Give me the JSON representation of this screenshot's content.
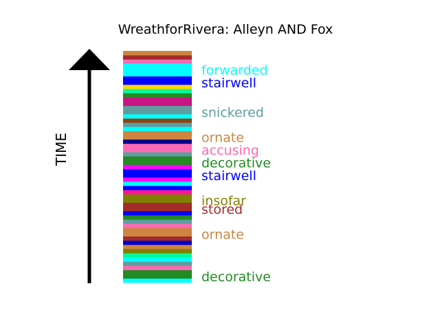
{
  "chart_data": {
    "type": "bar",
    "title": "WreathforRivera: Alleyn AND Fox",
    "axis_label": "TIME",
    "direction": "up",
    "stripes": [
      {
        "color": "#00ffff"
      },
      {
        "color": "#228b22"
      },
      {
        "color": "#228b22"
      },
      {
        "color": "#ff69b4"
      },
      {
        "color": "#5f9ea0"
      },
      {
        "color": "#00ffff"
      },
      {
        "color": "#00fa9a"
      },
      {
        "color": "#808000"
      },
      {
        "color": "#cd853f"
      },
      {
        "color": "#0000cd"
      },
      {
        "color": "#a52a2a"
      },
      {
        "color": "#cd853f"
      },
      {
        "color": "#cd853f"
      },
      {
        "color": "#ff69b4"
      },
      {
        "color": "#5f9ea0"
      },
      {
        "color": "#228b22"
      },
      {
        "color": "#0000ff"
      },
      {
        "color": "#a52a2a"
      },
      {
        "color": "#a52a2a"
      },
      {
        "color": "#808000"
      },
      {
        "color": "#808000"
      },
      {
        "color": "#ff1493"
      },
      {
        "color": "#0000ff"
      },
      {
        "color": "#00ffff"
      },
      {
        "color": "#ff00ff"
      },
      {
        "color": "#0000ff"
      },
      {
        "color": "#0000ff"
      },
      {
        "color": "#ff00ff"
      },
      {
        "color": "#228b22"
      },
      {
        "color": "#228b22"
      },
      {
        "color": "#5f9ea0"
      },
      {
        "color": "#ff69b4"
      },
      {
        "color": "#ff69b4"
      },
      {
        "color": "#00008b"
      },
      {
        "color": "#cd853f"
      },
      {
        "color": "#cd853f"
      },
      {
        "color": "#00ffff"
      },
      {
        "color": "#5f9ea0"
      },
      {
        "color": "#8b4513"
      },
      {
        "color": "#00ffff"
      },
      {
        "color": "#5f9ea0"
      },
      {
        "color": "#5f9ea0"
      },
      {
        "color": "#c71585"
      },
      {
        "color": "#c71585"
      },
      {
        "color": "#228b22"
      },
      {
        "color": "#00fa9a"
      },
      {
        "color": "#ffd700"
      },
      {
        "color": "#0000ff"
      },
      {
        "color": "#0000ff"
      },
      {
        "color": "#00ffff"
      },
      {
        "color": "#00ffff"
      },
      {
        "color": "#00ffff"
      },
      {
        "color": "#ff69b4"
      },
      {
        "color": "#a52a2a"
      },
      {
        "color": "#cd853f"
      }
    ],
    "labels": [
      {
        "text": "decorative",
        "color": "#228b22",
        "stripe": 1
      },
      {
        "text": "ornate",
        "color": "#cd853f",
        "stripe": 11
      },
      {
        "text": "stored",
        "color": "#a52a2a",
        "stripe": 17
      },
      {
        "text": "insofar",
        "color": "#808000",
        "stripe": 19
      },
      {
        "text": "stairwell",
        "color": "#0000ff",
        "stripe": 25
      },
      {
        "text": "decorative",
        "color": "#228b22",
        "stripe": 28
      },
      {
        "text": "accusing",
        "color": "#ff69b4",
        "stripe": 31
      },
      {
        "text": "ornate",
        "color": "#cd853f",
        "stripe": 34
      },
      {
        "text": "snickered",
        "color": "#5f9ea0",
        "stripe": 40
      },
      {
        "text": "stairwell",
        "color": "#0000ff",
        "stripe": 47
      },
      {
        "text": "forwarded",
        "color": "#00ffff",
        "stripe": 50
      }
    ]
  }
}
